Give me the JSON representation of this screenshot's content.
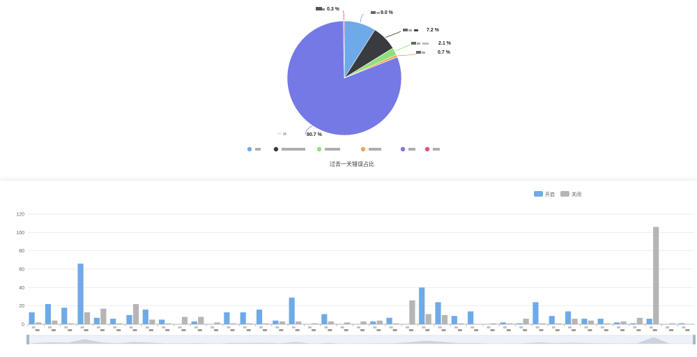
{
  "chart_data": [
    {
      "type": "pie",
      "title": "过去一天错误占比",
      "colors": [
        "#6faae8",
        "#3a3b40",
        "#8ee07a",
        "#f3a35c",
        "#7579e6",
        "#e0507a"
      ],
      "slices": [
        {
          "value": 9.0,
          "label": "9.0 %"
        },
        {
          "value": 7.2,
          "label": "7.2 %"
        },
        {
          "value": 2.1,
          "label": "2.1 %"
        },
        {
          "value": 0.7,
          "label": "0.7 %"
        },
        {
          "value": 80.7,
          "label": "80.7 %"
        },
        {
          "value": 0.3,
          "label": "0.3 %"
        }
      ],
      "legend_position": "bottom"
    },
    {
      "type": "bar",
      "ylim": [
        0,
        120
      ],
      "yticks": [
        0,
        20,
        40,
        60,
        80,
        100,
        120
      ],
      "grid": true,
      "legend_position": "top-right",
      "series": [
        {
          "name": "开启",
          "color": "#6faae8",
          "values": [
            13,
            22,
            18,
            66,
            7,
            6,
            10,
            16,
            5,
            0,
            3,
            0,
            13,
            13,
            16,
            4,
            29,
            0,
            11,
            0,
            0,
            3,
            7,
            0,
            40,
            24,
            9,
            14,
            0,
            2,
            1,
            24,
            9,
            14,
            6,
            6,
            2,
            1,
            6,
            0,
            1
          ]
        },
        {
          "name": "关闭",
          "color": "#b5b5b5",
          "values": [
            2,
            4,
            1,
            13,
            17,
            1,
            22,
            5,
            1,
            8,
            8,
            2,
            1,
            1,
            1,
            3,
            3,
            1,
            3,
            2,
            3,
            4,
            1,
            26,
            11,
            10,
            1,
            0,
            1,
            1,
            6,
            1,
            1,
            6,
            4,
            1,
            3,
            7,
            106,
            1,
            0
          ]
        }
      ]
    }
  ]
}
